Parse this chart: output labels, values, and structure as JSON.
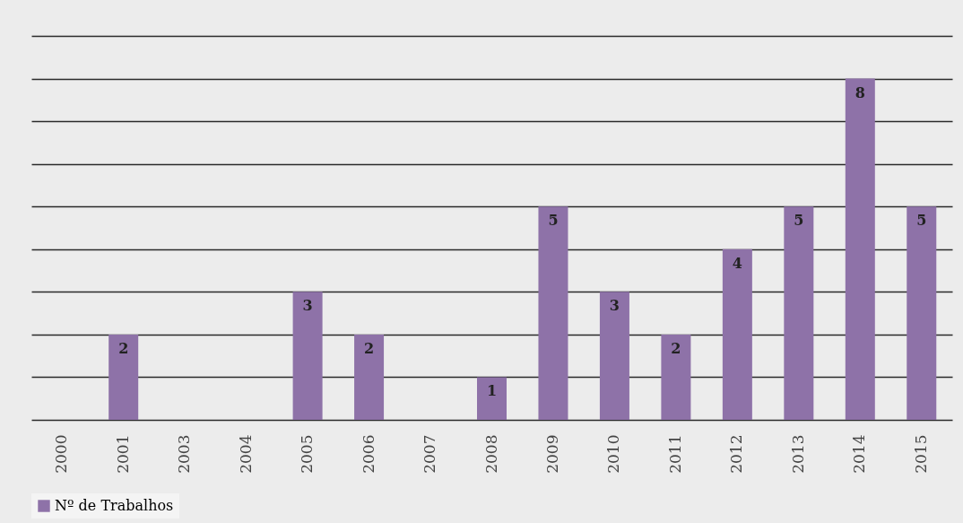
{
  "chart_data": {
    "type": "bar",
    "categories": [
      "2000",
      "2001",
      "2003",
      "2004",
      "2005",
      "2006",
      "2007",
      "2008",
      "2009",
      "2010",
      "2011",
      "2012",
      "2013",
      "2014",
      "2015"
    ],
    "series": [
      {
        "name": "Nº de Trabalhos",
        "color": "#8e72a8",
        "values": [
          0,
          2,
          0,
          0,
          3,
          2,
          0,
          1,
          5,
          3,
          2,
          4,
          5,
          8,
          5
        ],
        "value_labels": [
          null,
          "2",
          null,
          null,
          "3",
          "2",
          null,
          "1",
          "5",
          "3",
          "2",
          "4",
          "5",
          "8",
          "5"
        ]
      }
    ],
    "ylim": [
      0,
      9
    ],
    "yticks": [
      {
        "value": 0,
        "label": null
      },
      {
        "value": 1,
        "label": null
      },
      {
        "value": 2,
        "label": null
      },
      {
        "value": 3,
        "label": null
      },
      {
        "value": 4,
        "label": null
      },
      {
        "value": 5,
        "label": null
      },
      {
        "value": 6,
        "label": null
      },
      {
        "value": 7,
        "label": null
      },
      {
        "value": 8,
        "label": null
      },
      {
        "value": 9,
        "label": null
      }
    ],
    "grid": "y",
    "legend": "bottom",
    "tick_labels": "x"
  }
}
